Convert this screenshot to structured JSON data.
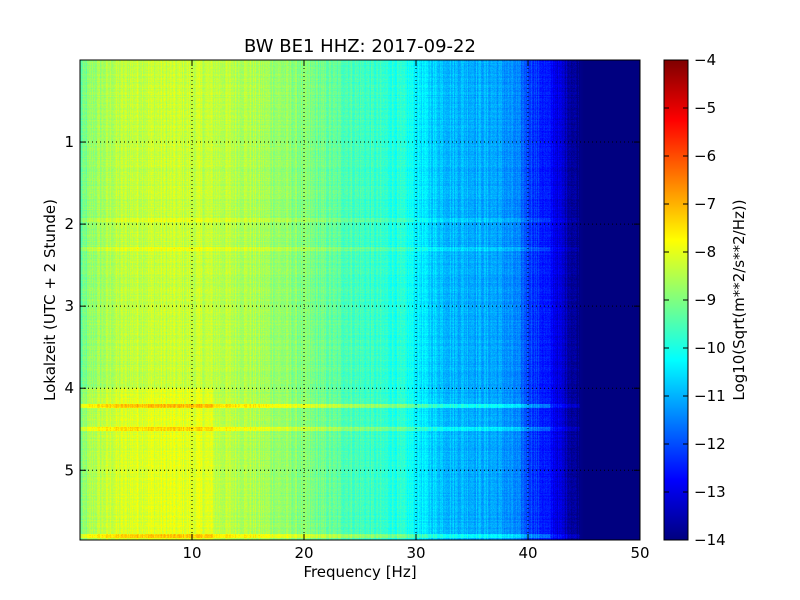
{
  "chart_data": {
    "type": "heatmap",
    "title": "BW BE1 HHZ: 2017-09-22",
    "xlabel": "Frequency [Hz]",
    "ylabel": "Lokalzeit (UTC + 2 Stunde)",
    "xlim": [
      0,
      50
    ],
    "ylim": [
      5.85,
      0
    ],
    "x_ticks": [
      10,
      20,
      30,
      40,
      50
    ],
    "x_tick_labels": [
      "10",
      "20",
      "30",
      "40",
      "50"
    ],
    "y_ticks": [
      1,
      2,
      3,
      4,
      5
    ],
    "y_tick_labels": [
      "1",
      "2",
      "3",
      "4",
      "5"
    ],
    "grid": true,
    "colormap": "jet",
    "colorbar": {
      "label": "Log10(Sqrt(m**2/s**2/Hz))",
      "range": [
        -14,
        -4
      ],
      "ticks": [
        -4,
        -5,
        -6,
        -7,
        -8,
        -9,
        -10,
        -11,
        -12,
        -13,
        -14
      ],
      "tick_labels": [
        "−4",
        "−5",
        "−6",
        "−7",
        "−8",
        "−9",
        "−10",
        "−11",
        "−12",
        "−13",
        "−14"
      ]
    },
    "spectral_profile": {
      "frequency_hz": [
        0,
        1,
        3,
        5,
        10,
        15,
        20,
        25,
        29,
        31,
        33,
        35,
        37,
        39,
        40,
        42,
        43,
        44,
        45,
        50
      ],
      "log10_amplitude": [
        -9.4,
        -8.8,
        -8.5,
        -8.3,
        -8.3,
        -8.5,
        -9.0,
        -9.6,
        -10.0,
        -10.6,
        -10.9,
        -11.0,
        -11.1,
        -11.5,
        -12.0,
        -12.7,
        -13.2,
        -13.7,
        -14.0,
        -14.0
      ]
    },
    "horizontal_features": [
      {
        "time_hours": 4.22,
        "delta_log10": 0.9
      },
      {
        "time_hours": 4.5,
        "delta_log10": 0.7
      },
      {
        "time_hours": 5.8,
        "delta_log10": 0.8
      },
      {
        "time_hours": 2.3,
        "delta_log10": 0.4
      },
      {
        "time_hours": 1.95,
        "delta_log10": 0.3
      }
    ]
  }
}
